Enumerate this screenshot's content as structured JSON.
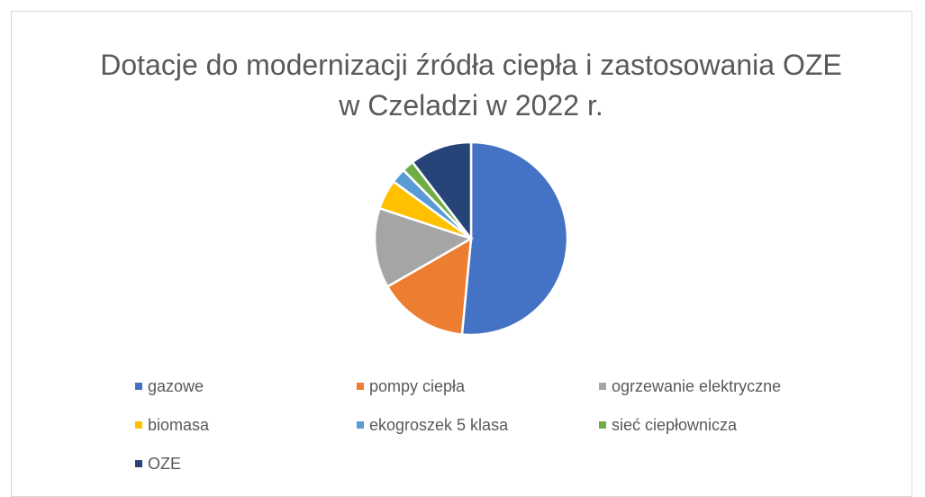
{
  "chart_data": {
    "type": "pie",
    "title": "Dotacje do modernizacji źródła ciepła i zastosowania OZE w Czeladzi w 2022 r.",
    "categories": [
      "gazowe",
      "pompy ciepła",
      "ogrzewanie elektryczne",
      "biomasa",
      "ekogroszek 5 klasa",
      "sieć ciepłownicza",
      "OZE"
    ],
    "values": [
      51.5,
      15.2,
      13.4,
      5,
      2.5,
      2,
      10.4
    ],
    "colors": [
      "#4472c4",
      "#ed7d31",
      "#a5a5a5",
      "#ffc000",
      "#5b9bd5",
      "#70ad47",
      "#264478"
    ],
    "legend": "bottom"
  }
}
